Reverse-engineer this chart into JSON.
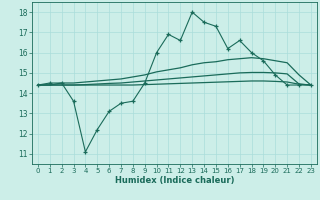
{
  "title": "",
  "xlabel": "Humidex (Indice chaleur)",
  "bg_color": "#cceee8",
  "grid_color": "#aaddda",
  "line_color": "#1a6b5a",
  "xlim": [
    -0.5,
    23.5
  ],
  "ylim": [
    10.5,
    18.5
  ],
  "xticks": [
    0,
    1,
    2,
    3,
    4,
    5,
    6,
    7,
    8,
    9,
    10,
    11,
    12,
    13,
    14,
    15,
    16,
    17,
    18,
    19,
    20,
    21,
    22,
    23
  ],
  "yticks": [
    11,
    12,
    13,
    14,
    15,
    16,
    17,
    18
  ],
  "line1": [
    14.4,
    14.5,
    14.5,
    13.6,
    11.1,
    12.2,
    13.1,
    13.5,
    13.6,
    14.5,
    16.0,
    16.9,
    16.6,
    18.0,
    17.5,
    17.3,
    16.2,
    16.6,
    16.0,
    15.6,
    14.9,
    14.4,
    14.4,
    14.4
  ],
  "line2": [
    14.4,
    14.4,
    14.5,
    14.5,
    14.55,
    14.6,
    14.65,
    14.7,
    14.8,
    14.9,
    15.05,
    15.15,
    15.25,
    15.4,
    15.5,
    15.55,
    15.65,
    15.7,
    15.75,
    15.7,
    15.6,
    15.5,
    14.9,
    14.4
  ],
  "line3": [
    14.4,
    14.4,
    14.4,
    14.4,
    14.42,
    14.45,
    14.48,
    14.5,
    14.55,
    14.6,
    14.65,
    14.7,
    14.75,
    14.8,
    14.85,
    14.9,
    14.95,
    15.0,
    15.02,
    15.02,
    15.0,
    14.95,
    14.45,
    14.4
  ],
  "line4": [
    14.4,
    14.4,
    14.4,
    14.4,
    14.4,
    14.4,
    14.4,
    14.4,
    14.4,
    14.42,
    14.44,
    14.46,
    14.48,
    14.5,
    14.52,
    14.54,
    14.56,
    14.58,
    14.6,
    14.6,
    14.58,
    14.55,
    14.44,
    14.4
  ]
}
